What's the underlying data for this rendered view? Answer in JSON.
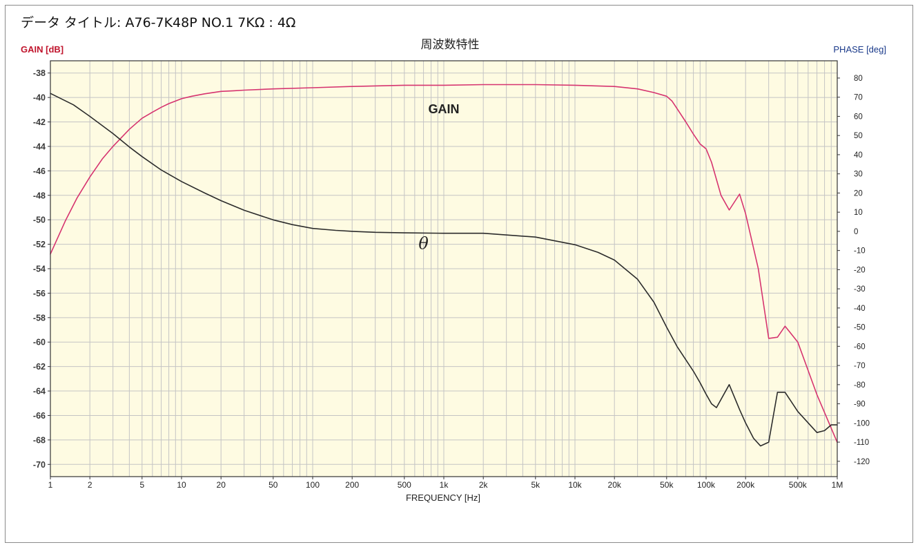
{
  "data_title": "データ タイトル: A76-7K48P  NO.1  7KΩ : 4Ω",
  "colors": {
    "plot_background": "#fefbe2",
    "grid": "#c4c4c4",
    "gain_line": "#d6336f",
    "phase_line": "#2b2b2b",
    "left_axis_label": "#c0142c",
    "right_axis_label": "#1a3a8a"
  },
  "chart_data": {
    "type": "line",
    "title": "周波数特性",
    "xlabel": "FREQUENCY [Hz]",
    "ylabel": "GAIN [dB]",
    "y2label": "PHASE [deg]",
    "xscale": "log",
    "xlim": [
      1,
      1000000
    ],
    "ylim": [
      -71,
      -37
    ],
    "y2lim": [
      -128,
      89
    ],
    "grid": true,
    "x_ticks": [
      1,
      2,
      5,
      10,
      20,
      50,
      100,
      200,
      500,
      1000,
      2000,
      5000,
      10000,
      20000,
      50000,
      100000,
      200000,
      500000,
      1000000
    ],
    "x_tick_labels": [
      "1",
      "2",
      "5",
      "10",
      "20",
      "50",
      "100",
      "200",
      "500",
      "1k",
      "2k",
      "5k",
      "10k",
      "20k",
      "50k",
      "100k",
      "200k",
      "500k",
      "1M"
    ],
    "y_ticks": [
      -38,
      -40,
      -42,
      -44,
      -46,
      -48,
      -50,
      -52,
      -54,
      -56,
      -58,
      -60,
      -62,
      -64,
      -66,
      -68,
      -70
    ],
    "y_tick_labels": [
      "-38",
      "-40",
      "-42",
      "-44",
      "-46",
      "-48",
      "-50",
      "-52",
      "-54",
      "-56",
      "-58",
      "-60",
      "-62",
      "-64",
      "-66",
      "-68",
      "-70"
    ],
    "y2_ticks": [
      80,
      70,
      60,
      50,
      40,
      30,
      20,
      10,
      0,
      -10,
      -20,
      -30,
      -40,
      -50,
      -60,
      -70,
      -80,
      -90,
      -100,
      -110,
      -120
    ],
    "y2_tick_labels": [
      "80",
      "70",
      "60",
      "50",
      "40",
      "30",
      "20",
      "10",
      "0",
      "-10",
      "-20",
      "-30",
      "-40",
      "-50",
      "-60",
      "-70",
      "-80",
      "-90",
      "-100",
      "-110",
      "-120"
    ],
    "annotations": [
      {
        "text": "GAIN",
        "x": 1000,
        "y": -41.3,
        "axis": "left",
        "style": "bold"
      },
      {
        "text": "θ",
        "x": 700,
        "y": -52.4,
        "axis": "left",
        "style": "italic"
      }
    ],
    "series": [
      {
        "name": "GAIN",
        "axis": "left",
        "x": [
          1,
          1.3,
          1.6,
          2,
          2.5,
          3,
          4,
          5,
          6,
          7,
          8,
          10,
          12,
          15,
          20,
          25,
          30,
          50,
          100,
          200,
          500,
          1000,
          2000,
          5000,
          10000,
          20000,
          30000,
          40000,
          50000,
          55000,
          60000,
          70000,
          80000,
          90000,
          100000,
          110000,
          130000,
          150000,
          180000,
          200000,
          250000,
          300000,
          350000,
          400000,
          500000,
          700000,
          1000000
        ],
        "values": [
          -52.8,
          -50.1,
          -48.2,
          -46.5,
          -45.0,
          -44.0,
          -42.6,
          -41.7,
          -41.2,
          -40.8,
          -40.5,
          -40.1,
          -39.9,
          -39.7,
          -39.5,
          -39.45,
          -39.4,
          -39.3,
          -39.2,
          -39.1,
          -39.0,
          -39.0,
          -38.95,
          -38.95,
          -39.0,
          -39.1,
          -39.3,
          -39.6,
          -39.9,
          -40.3,
          -40.9,
          -42.0,
          -43.0,
          -43.8,
          -44.2,
          -45.3,
          -48.0,
          -49.2,
          -47.9,
          -49.5,
          -54.0,
          -59.7,
          -59.6,
          -58.7,
          -60.0,
          -64.3,
          -68.2
        ]
      },
      {
        "name": "θ",
        "axis": "right",
        "x": [
          1,
          1.5,
          2,
          3,
          4,
          5,
          7,
          10,
          15,
          20,
          30,
          50,
          70,
          100,
          150,
          200,
          300,
          500,
          1000,
          2000,
          5000,
          10000,
          15000,
          20000,
          30000,
          40000,
          50000,
          60000,
          70000,
          80000,
          90000,
          100000,
          110000,
          120000,
          150000,
          180000,
          200000,
          230000,
          260000,
          300000,
          350000,
          400000,
          500000,
          700000,
          800000,
          900000,
          1000000
        ],
        "values": [
          72,
          66,
          60,
          51,
          44,
          39,
          32,
          26,
          20,
          16,
          11,
          6,
          3.5,
          1.5,
          0.5,
          0,
          -0.5,
          -0.8,
          -1,
          -1,
          -3,
          -7,
          -11,
          -15,
          -25,
          -37,
          -50,
          -60,
          -67,
          -73,
          -79,
          -85,
          -90,
          -92,
          -80,
          -93,
          -100,
          -108,
          -112,
          -110,
          -84,
          -84,
          -94,
          -105,
          -104,
          -101,
          -101
        ]
      }
    ]
  }
}
